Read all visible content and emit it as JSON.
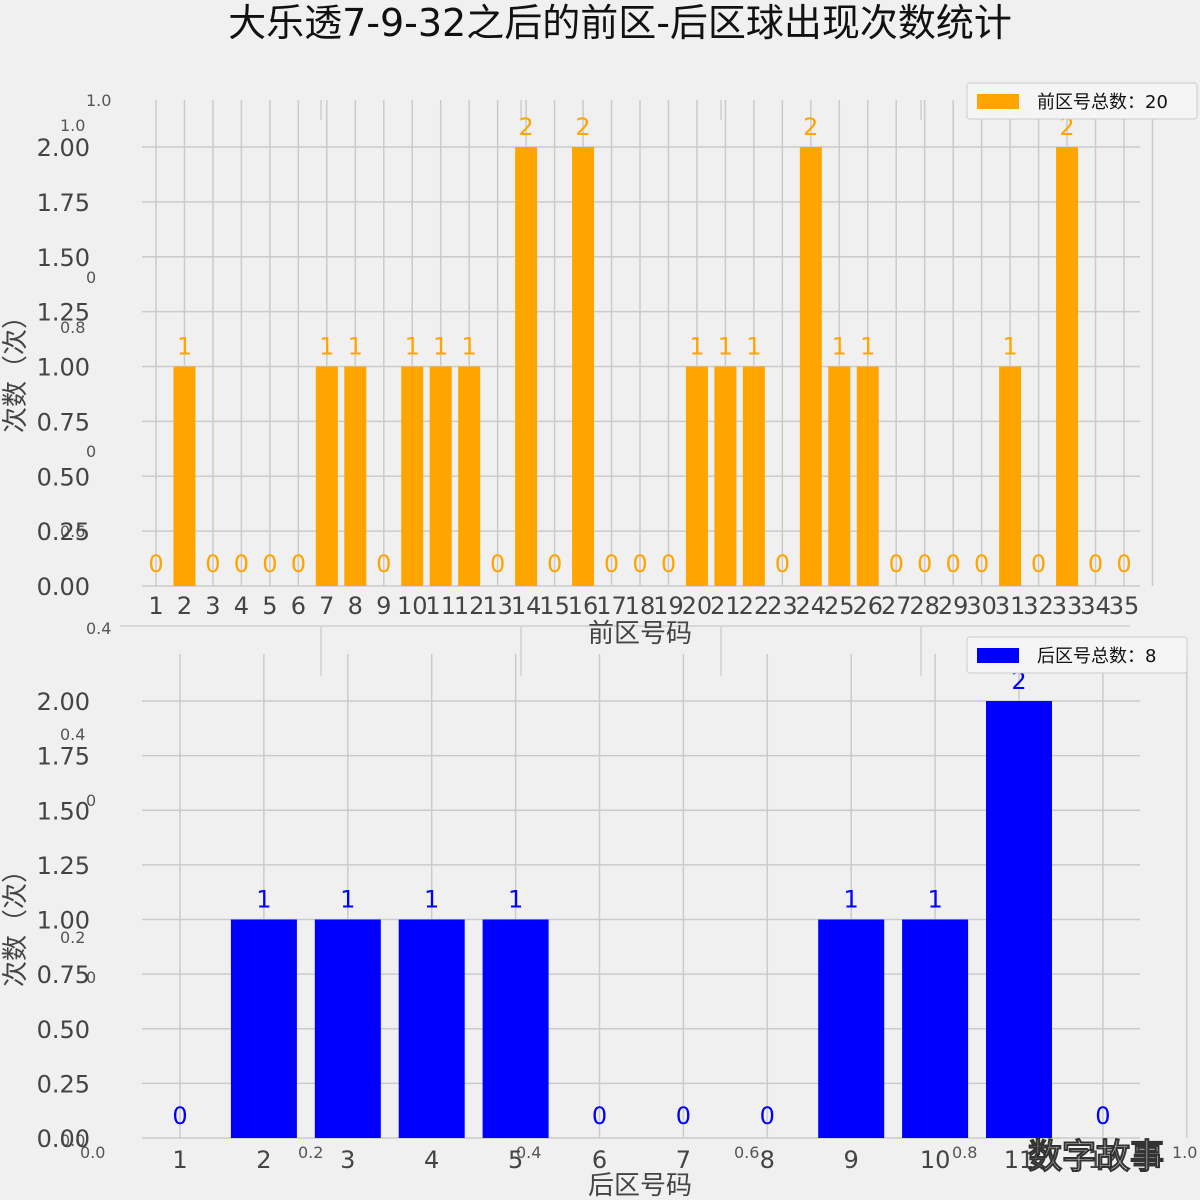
{
  "title": "大乐透7-9-32之后的前区-后区球出现次数统计",
  "watermark": "数字故事",
  "ghost_axes": {
    "left_labels": [
      "1.0",
      "1.0",
      "0",
      "0.8",
      "0",
      "0.6",
      "0.4",
      "0.4",
      "0",
      "0.2",
      "0",
      "0.0"
    ],
    "bottom_labels": [
      "0.0",
      "0.2",
      "0.4",
      "0.6",
      "0.8",
      "1.0"
    ]
  },
  "chart_data": [
    {
      "type": "bar",
      "xlabel": "前区号码",
      "ylabel": "次数（次）",
      "ylim": [
        0,
        2
      ],
      "yticks": [
        "0.00",
        "0.25",
        "0.50",
        "0.75",
        "1.00",
        "1.25",
        "1.50",
        "1.75",
        "2.00"
      ],
      "grid": true,
      "legend": {
        "label": "前区号总数：20",
        "placement": "top-right"
      },
      "color": "#ffa500",
      "categories": [
        "1",
        "2",
        "3",
        "4",
        "5",
        "6",
        "7",
        "8",
        "9",
        "10",
        "11",
        "12",
        "13",
        "14",
        "15",
        "16",
        "17",
        "18",
        "19",
        "20",
        "21",
        "22",
        "23",
        "24",
        "25",
        "26",
        "27",
        "28",
        "29",
        "30",
        "31",
        "32",
        "33",
        "34",
        "35"
      ],
      "values": [
        0,
        1,
        0,
        0,
        0,
        0,
        1,
        1,
        0,
        1,
        1,
        1,
        0,
        2,
        0,
        2,
        0,
        0,
        0,
        1,
        1,
        1,
        0,
        2,
        1,
        1,
        0,
        0,
        0,
        0,
        1,
        0,
        2,
        0,
        0
      ]
    },
    {
      "type": "bar",
      "xlabel": "后区号码",
      "ylabel": "次数（次）",
      "ylim": [
        0,
        2
      ],
      "yticks": [
        "0.00",
        "0.25",
        "0.50",
        "0.75",
        "1.00",
        "1.25",
        "1.50",
        "1.75",
        "2.00"
      ],
      "grid": true,
      "legend": {
        "label": "后区号总数：8",
        "placement": "top-right"
      },
      "color": "#0000ff",
      "categories": [
        "1",
        "2",
        "3",
        "4",
        "5",
        "6",
        "7",
        "8",
        "9",
        "10",
        "11",
        "12"
      ],
      "values": [
        0,
        1,
        1,
        1,
        1,
        0,
        0,
        0,
        1,
        1,
        2,
        0
      ]
    }
  ]
}
